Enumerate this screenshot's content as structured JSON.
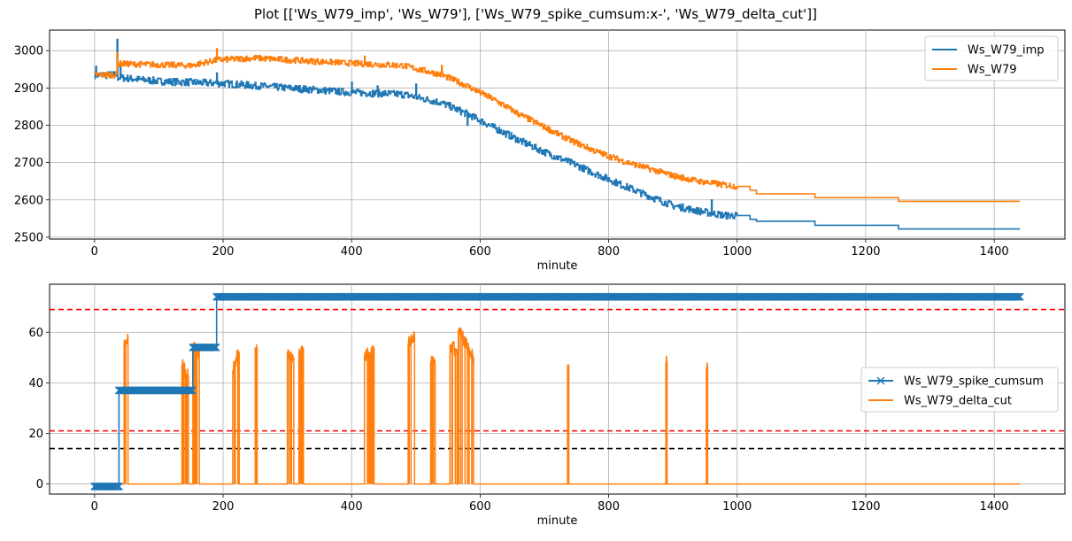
{
  "chart_data": [
    {
      "type": "line",
      "title": "Plot [['Ws_W79_imp', 'Ws_W79'], ['Ws_W79_spike_cumsum:x-', 'Ws_W79_delta_cut']]",
      "xlabel": "minute",
      "ylabel": "",
      "xlim": [
        -70,
        1510
      ],
      "ylim": [
        2495,
        3055
      ],
      "xticks": [
        0,
        200,
        400,
        600,
        800,
        1000,
        1200,
        1400
      ],
      "yticks": [
        2500,
        2600,
        2700,
        2800,
        2900,
        3000
      ],
      "grid": true,
      "legend": "top-right",
      "series": [
        {
          "name": "Ws_W79_imp",
          "color": "#1f77b4",
          "style": "step",
          "noise": 12,
          "spikes": [
            [
              2,
              2958
            ],
            [
              35,
              3030
            ],
            [
              40,
              2960
            ],
            [
              190,
              2940
            ],
            [
              400,
              2915
            ],
            [
              440,
              2905
            ],
            [
              500,
              2910
            ],
            [
              580,
              2800
            ],
            [
              900,
              2580
            ],
            [
              960,
              2600
            ]
          ],
          "points": [
            [
              0,
              2935
            ],
            [
              35,
              2935
            ],
            [
              36,
              2928
            ],
            [
              100,
              2918
            ],
            [
              200,
              2912
            ],
            [
              300,
              2900
            ],
            [
              400,
              2888
            ],
            [
              480,
              2883
            ],
            [
              540,
              2860
            ],
            [
              580,
              2830
            ],
            [
              620,
              2795
            ],
            [
              660,
              2760
            ],
            [
              700,
              2728
            ],
            [
              740,
              2700
            ],
            [
              780,
              2670
            ],
            [
              820,
              2640
            ],
            [
              860,
              2612
            ],
            [
              900,
              2585
            ],
            [
              940,
              2570
            ],
            [
              980,
              2558
            ],
            [
              1000,
              2558
            ],
            [
              1020,
              2548
            ],
            [
              1030,
              2543
            ],
            [
              1120,
              2543
            ],
            [
              1121,
              2532
            ],
            [
              1250,
              2532
            ],
            [
              1251,
              2522
            ],
            [
              1440,
              2522
            ]
          ]
        },
        {
          "name": "Ws_W79",
          "color": "#ff7f0e",
          "style": "step",
          "noise": 10,
          "spikes": [
            [
              35,
              2995
            ],
            [
              190,
              3005
            ],
            [
              420,
              2985
            ],
            [
              540,
              2960
            ]
          ],
          "points": [
            [
              0,
              2935
            ],
            [
              35,
              2935
            ],
            [
              36,
              2965
            ],
            [
              100,
              2962
            ],
            [
              150,
              2960
            ],
            [
              190,
              2975
            ],
            [
              250,
              2980
            ],
            [
              400,
              2966
            ],
            [
              480,
              2960
            ],
            [
              540,
              2935
            ],
            [
              580,
              2905
            ],
            [
              620,
              2870
            ],
            [
              660,
              2830
            ],
            [
              700,
              2795
            ],
            [
              740,
              2760
            ],
            [
              780,
              2730
            ],
            [
              820,
              2705
            ],
            [
              860,
              2685
            ],
            [
              900,
              2665
            ],
            [
              940,
              2650
            ],
            [
              980,
              2640
            ],
            [
              1000,
              2636
            ],
            [
              1020,
              2626
            ],
            [
              1030,
              2616
            ],
            [
              1120,
              2616
            ],
            [
              1121,
              2606
            ],
            [
              1250,
              2606
            ],
            [
              1251,
              2596
            ],
            [
              1440,
              2596
            ]
          ]
        }
      ]
    },
    {
      "type": "line",
      "title": "",
      "xlabel": "minute",
      "ylabel": "",
      "xlim": [
        -70,
        1510
      ],
      "ylim": [
        -4,
        79
      ],
      "xticks": [
        0,
        200,
        400,
        600,
        800,
        1000,
        1200,
        1400
      ],
      "yticks": [
        0,
        20,
        40,
        60
      ],
      "grid": true,
      "legend": "center-right",
      "hlines": [
        {
          "y": 69,
          "color": "#ff0000"
        },
        {
          "y": 21,
          "color": "#ff0000"
        },
        {
          "y": 14,
          "color": "#000000"
        }
      ],
      "series": [
        {
          "name": "Ws_W79_spike_cumsum",
          "color": "#1f77b4",
          "marker": "x",
          "style": "step",
          "segments": [
            [
              0,
              38,
              -1
            ],
            [
              38,
              153,
              37
            ],
            [
              153,
              190,
              54
            ],
            [
              190,
              1440,
              74
            ]
          ]
        },
        {
          "name": "Ws_W79_delta_cut",
          "color": "#ff7f0e",
          "style": "pulses",
          "pulses": [
            [
              46,
              52,
              55,
              58
            ],
            [
              136,
              146,
              47,
              43
            ],
            [
              153,
              163,
              55,
              52
            ],
            [
              215,
              225,
              45,
              52
            ],
            [
              250,
              253,
              54,
              54
            ],
            [
              300,
              310,
              52,
              50
            ],
            [
              318,
              325,
              51,
              54
            ],
            [
              420,
              435,
              50,
              53
            ],
            [
              488,
              498,
              55,
              59
            ],
            [
              523,
              530,
              48,
              47
            ],
            [
              553,
              564,
              55,
              52
            ],
            [
              566,
              590,
              61,
              50
            ],
            [
              736,
              738,
              47,
              47
            ],
            [
              889,
              891,
              48,
              48
            ],
            [
              952,
              954,
              46,
              46
            ]
          ]
        }
      ]
    }
  ]
}
